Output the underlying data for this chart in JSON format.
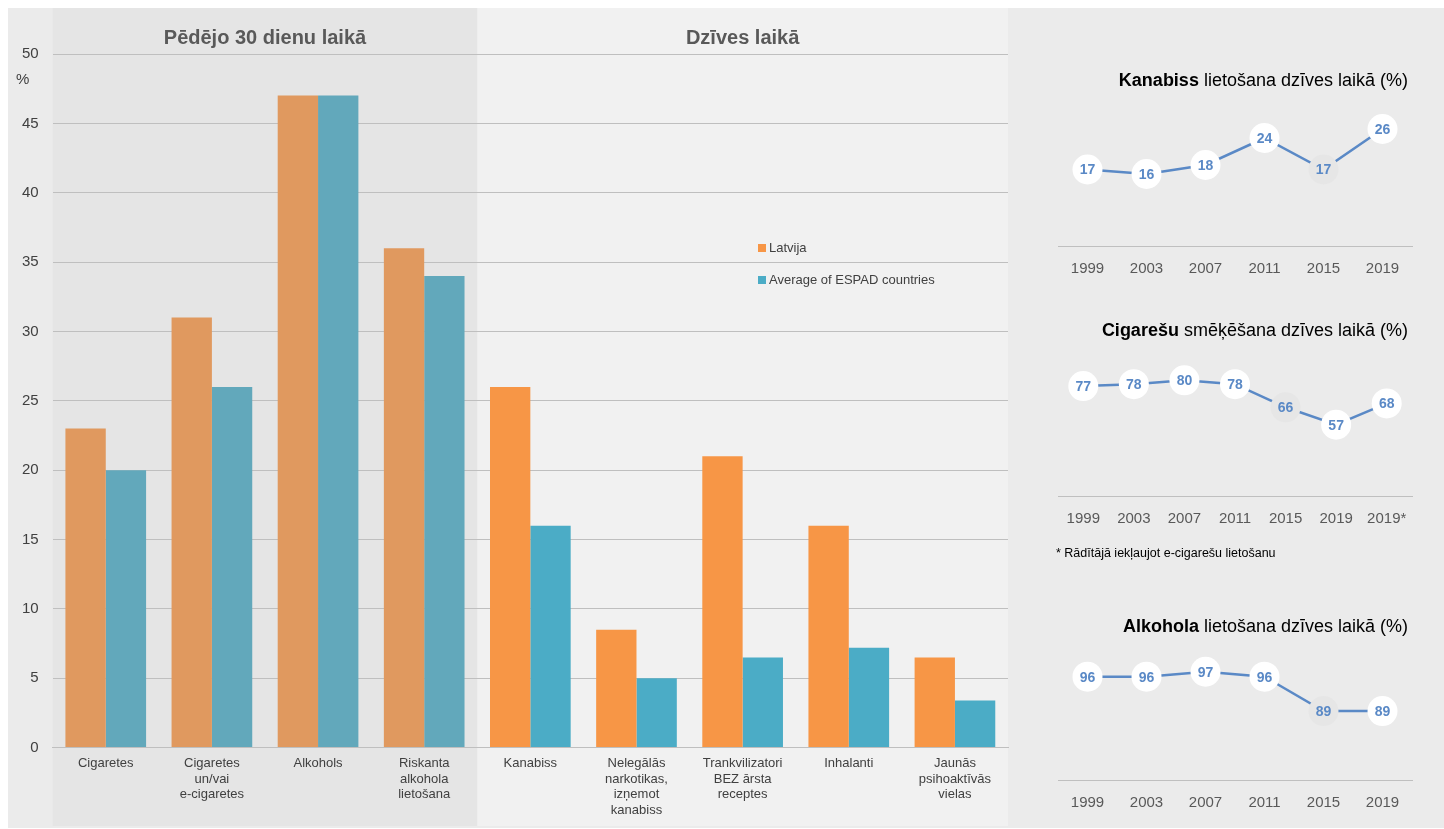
{
  "chart_data": [
    {
      "type": "bar",
      "categories": [
        "Cigaretes",
        "Cigaretes un/vai e-cigaretes",
        "Alkohols",
        "Riskanta alkohola lietošana",
        "Kanabiss",
        "Nelegālās narkotikas, izņemot kanabiss",
        "Trankvilizatori BEZ ārsta receptes",
        "Inhalanti",
        "Jaunās psihoaktīvās vielas"
      ],
      "series": [
        {
          "name": "Latvija",
          "color": "#f79646",
          "colors": [
            "#e0995f",
            "#e0995f",
            "#e0995f",
            "#e0995f",
            "#f79646",
            "#f79646",
            "#f79646",
            "#f79646",
            "#f79646"
          ],
          "values": [
            23,
            31,
            47,
            36,
            26,
            8.5,
            21,
            16,
            6.5
          ]
        },
        {
          "name": "Average of ESPAD countries",
          "color": "#4bacc6",
          "colors": [
            "#62a8bb",
            "#62a8bb",
            "#62a8bb",
            "#62a8bb",
            "#4bacc6",
            "#4bacc6",
            "#4bacc6",
            "#4bacc6",
            "#4bacc6"
          ],
          "values": [
            20,
            26,
            47,
            34,
            16,
            5,
            6.5,
            7.2,
            3.4
          ]
        }
      ],
      "ylabel": "%",
      "ylim": [
        0,
        50
      ],
      "yticks": [
        0,
        5,
        10,
        15,
        20,
        25,
        30,
        35,
        40,
        45,
        50
      ],
      "grid": "y",
      "legend": "right",
      "bands": [
        {
          "axis": "x",
          "from": "Cigaretes",
          "to": "Riskanta alkohola lietošana",
          "label": "Pēdējo 30 dienu laikā",
          "color": "#e5e5e5"
        },
        {
          "axis": "x",
          "from": "Kanabiss",
          "to": "Jaunās psihoaktīvās vielas",
          "label": "Dzīves laikā",
          "color": "#f1f1f1"
        }
      ]
    },
    {
      "type": "line",
      "title": "Kanabiss lietošana dzīves laikā (%)",
      "categories": [
        "1999",
        "2003",
        "2007",
        "2011",
        "2015",
        "2019"
      ],
      "series": [
        {
          "color": "#5a89c6",
          "colors": [
            "#ffffff",
            "#ffffff",
            "#ffffff",
            "#ffffff",
            "#e6e6e6",
            "#ffffff"
          ],
          "values": [
            17,
            16,
            18,
            24,
            17,
            26
          ]
        }
      ],
      "tick_labels": "x",
      "data_labels": true,
      "marker": "circle",
      "grid": false,
      "legend": false
    },
    {
      "type": "line",
      "title": "Cigarešu smēķēšana dzīves laikā (%)",
      "categories": [
        "1999",
        "2003",
        "2007",
        "2011",
        "2015",
        "2019",
        "2019*"
      ],
      "series": [
        {
          "color": "#5a89c6",
          "colors": [
            "#ffffff",
            "#ffffff",
            "#ffffff",
            "#ffffff",
            "#e6e6e6",
            "#ffffff",
            "#ffffff"
          ],
          "values": [
            77,
            78,
            80,
            78,
            66,
            57,
            68
          ]
        }
      ],
      "tick_labels": "x",
      "data_labels": true,
      "marker": "circle",
      "grid": false,
      "legend": false,
      "annotations": [
        "* Rādītājā iekļaujot e-cigarešu lietošanu"
      ]
    },
    {
      "type": "line",
      "title": "Alkohola lietošana dzīves laikā (%)",
      "categories": [
        "1999",
        "2003",
        "2007",
        "2011",
        "2015",
        "2019"
      ],
      "series": [
        {
          "color": "#5a89c6",
          "colors": [
            "#ffffff",
            "#ffffff",
            "#ffffff",
            "#ffffff",
            "#e6e6e6",
            "#ffffff"
          ],
          "values": [
            96,
            96,
            97,
            96,
            89,
            89
          ]
        }
      ],
      "tick_labels": "x",
      "data_labels": true,
      "marker": "circle",
      "grid": false,
      "legend": false
    }
  ]
}
